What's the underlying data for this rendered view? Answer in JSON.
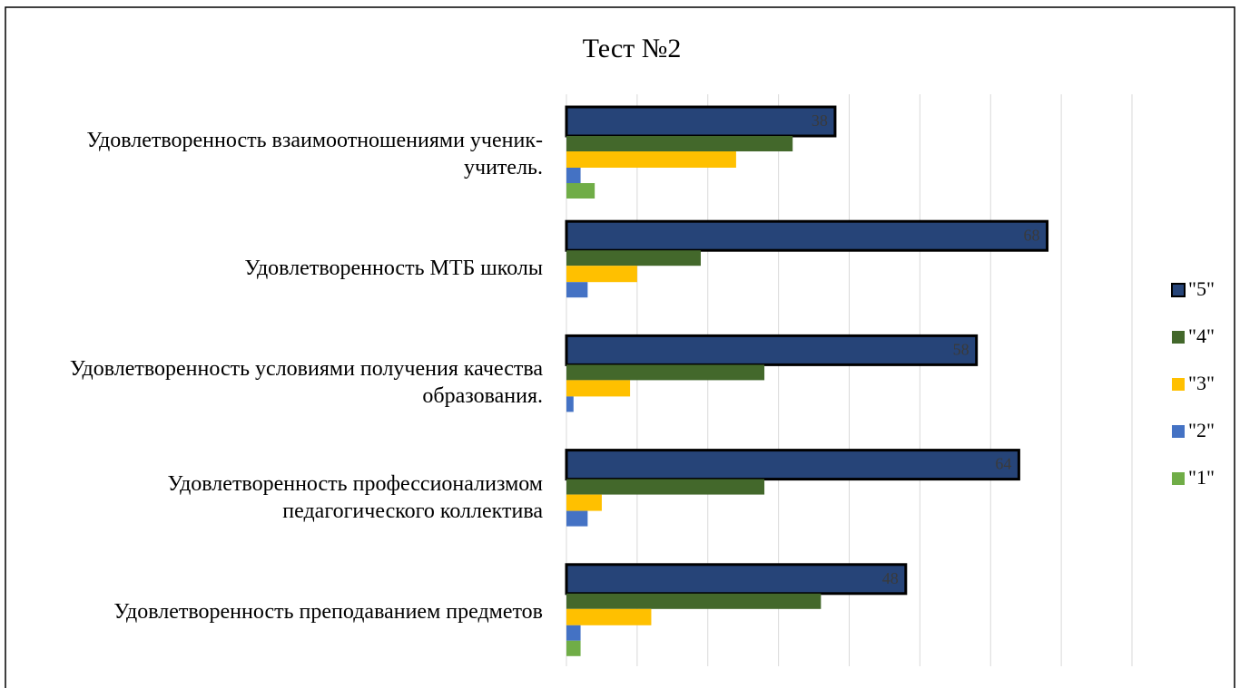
{
  "chart_data": {
    "type": "bar",
    "orientation": "horizontal",
    "title": "Тест №2",
    "categories": [
      "Удовлетворенность взаимоотношениями ученик-учитель.",
      "Удовлетворенность МТБ школы",
      "Удовлетворенность условиями получения качества образования.",
      "Удовлетворенность профессионализмом педагогического коллектива",
      "Удовлетворенность преподаванием предметов"
    ],
    "series": [
      {
        "name": "\"5\"",
        "color": "#264478",
        "values": [
          38,
          68,
          58,
          64,
          48
        ],
        "data_labels": true,
        "outline": "#000000"
      },
      {
        "name": "\"4\"",
        "color": "#43682b",
        "values": [
          32,
          19,
          28,
          28,
          36
        ]
      },
      {
        "name": "\"3\"",
        "color": "#ffc000",
        "values": [
          24,
          10,
          9,
          5,
          12
        ]
      },
      {
        "name": "\"2\"",
        "color": "#4472c4",
        "values": [
          2,
          3,
          1,
          3,
          2
        ]
      },
      {
        "name": "\"1\"",
        "color": "#70ad47",
        "values": [
          4,
          0,
          0,
          0,
          2
        ]
      }
    ],
    "xlim": [
      0,
      80
    ],
    "xticks": [
      0,
      10,
      20,
      30,
      40,
      50,
      60,
      70,
      80
    ],
    "grid": true,
    "legend": "right"
  }
}
